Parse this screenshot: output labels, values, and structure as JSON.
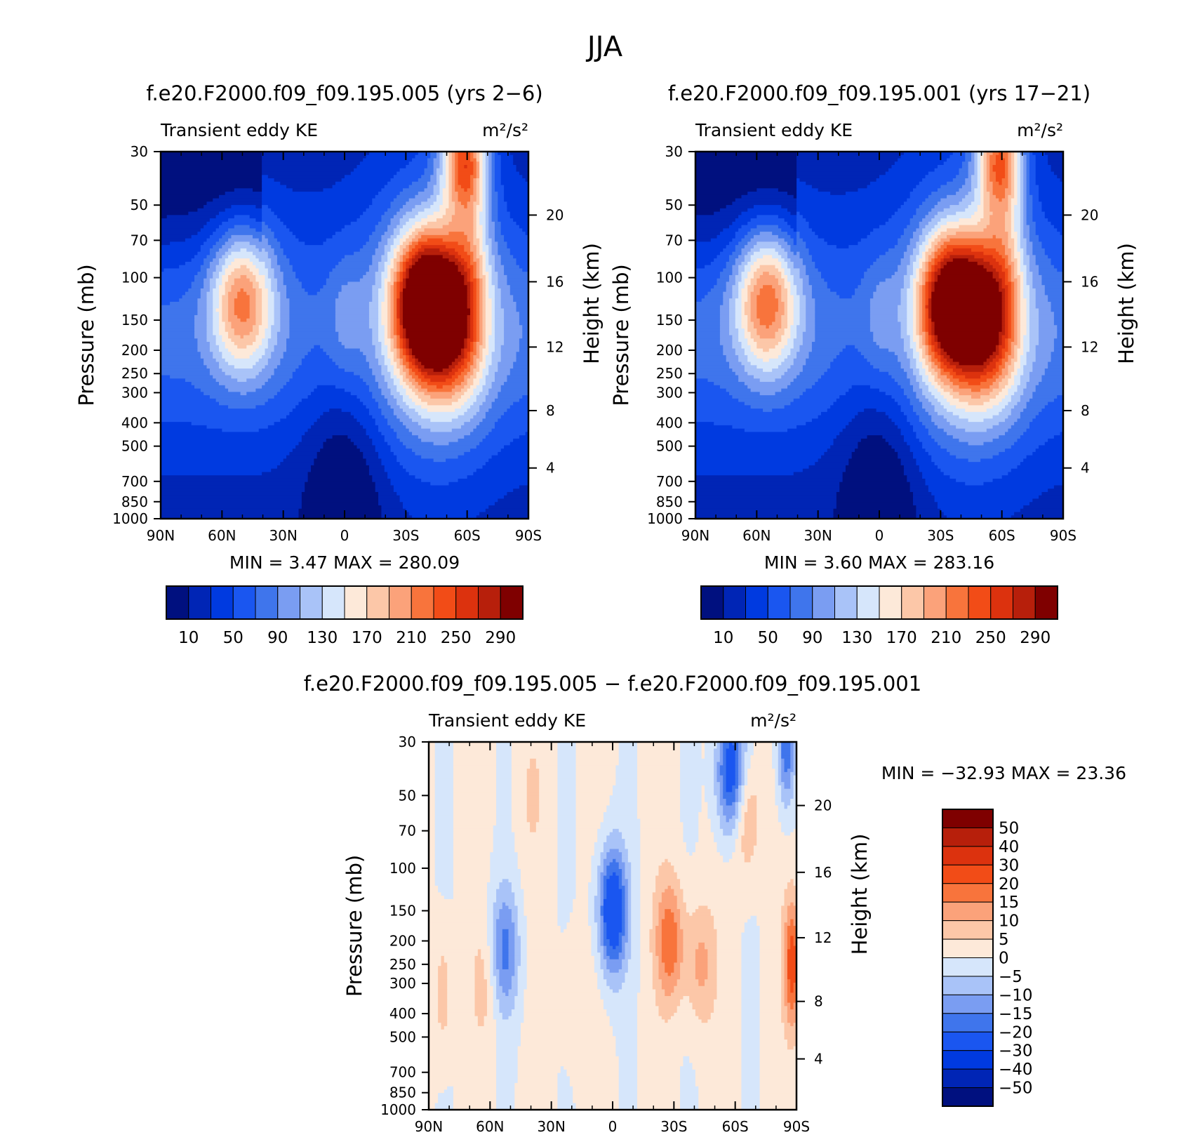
{
  "figure": {
    "title": "JJA"
  },
  "chart_data": [
    {
      "type": "heatmap",
      "id": "panel-a",
      "title": "f.e20.F2000.f09_f09.195.005 (yrs 2−6)",
      "subtitle_left": "Transient eddy KE",
      "units": "m²/s²",
      "ylabel": "Pressure (mb)",
      "ylabel_right": "Height (km)",
      "x_ticks": [
        "90N",
        "60N",
        "30N",
        "0",
        "30S",
        "60S",
        "90S"
      ],
      "y_ticks": [
        "30",
        "50",
        "70",
        "100",
        "150",
        "200",
        "250",
        "300",
        "400",
        "500",
        "700",
        "850",
        "1000"
      ],
      "height_ticks": [
        "4",
        "8",
        "12",
        "16",
        "20"
      ],
      "stats_text": "MIN =    3.47   MAX =  280.09",
      "min": 3.47,
      "max": 280.09,
      "colorbar": {
        "labels": [
          "10",
          "50",
          "90",
          "130",
          "170",
          "210",
          "250",
          "290"
        ],
        "levels": [
          10,
          30,
          50,
          70,
          90,
          110,
          130,
          150,
          170,
          190,
          210,
          230,
          250,
          270,
          290
        ],
        "colors": [
          "#00107f",
          "#0025b5",
          "#003ae0",
          "#1a56f0",
          "#3f75ec",
          "#7a9df2",
          "#a9c3f8",
          "#d6e6fb",
          "#fde9d9",
          "#fcc7a8",
          "#fba27a",
          "#f8743c",
          "#f24c17",
          "#dc320e",
          "#b71f0b",
          "#7f0000"
        ]
      },
      "features": [
        {
          "lat": 50,
          "p": 250,
          "peak": 205
        },
        {
          "lat": -37,
          "p": 260,
          "peak": 280
        },
        {
          "lat": -50,
          "p": 300,
          "peak": 276
        },
        {
          "lat": -58,
          "p": 35,
          "peak": 200
        }
      ]
    },
    {
      "type": "heatmap",
      "id": "panel-b",
      "title": "f.e20.F2000.f09_f09.195.001 (yrs 17−21)",
      "subtitle_left": "Transient eddy KE",
      "units": "m²/s²",
      "ylabel": "Pressure (mb)",
      "ylabel_right": "Height (km)",
      "x_ticks": [
        "90N",
        "60N",
        "30N",
        "0",
        "30S",
        "60S",
        "90S"
      ],
      "y_ticks": [
        "30",
        "50",
        "70",
        "100",
        "150",
        "200",
        "250",
        "300",
        "400",
        "500",
        "700",
        "850",
        "1000"
      ],
      "height_ticks": [
        "4",
        "8",
        "12",
        "16",
        "20"
      ],
      "stats_text": "MIN =    3.60   MAX =  283.16",
      "min": 3.6,
      "max": 283.16,
      "colorbar": {
        "labels": [
          "10",
          "50",
          "90",
          "130",
          "170",
          "210",
          "250",
          "290"
        ],
        "levels": [
          10,
          30,
          50,
          70,
          90,
          110,
          130,
          150,
          170,
          190,
          210,
          230,
          250,
          270,
          290
        ],
        "colors": [
          "#00107f",
          "#0025b5",
          "#003ae0",
          "#1a56f0",
          "#3f75ec",
          "#7a9df2",
          "#a9c3f8",
          "#d6e6fb",
          "#fde9d9",
          "#fcc7a8",
          "#fba27a",
          "#f8743c",
          "#f24c17",
          "#dc320e",
          "#b71f0b",
          "#7f0000"
        ]
      },
      "features": [
        {
          "lat": 55,
          "p": 250,
          "peak": 212
        },
        {
          "lat": -33,
          "p": 250,
          "peak": 283
        },
        {
          "lat": -50,
          "p": 300,
          "peak": 276
        },
        {
          "lat": -58,
          "p": 35,
          "peak": 190
        }
      ]
    },
    {
      "type": "heatmap",
      "id": "panel-diff",
      "title": "f.e20.F2000.f09_f09.195.005 − f.e20.F2000.f09_f09.195.001",
      "subtitle_left": "Transient eddy KE",
      "units": "m²/s²",
      "ylabel": "Pressure (mb)",
      "ylabel_right": "Height (km)",
      "x_ticks": [
        "90N",
        "60N",
        "30N",
        "0",
        "30S",
        "60S",
        "90S"
      ],
      "y_ticks": [
        "30",
        "50",
        "70",
        "100",
        "150",
        "200",
        "250",
        "300",
        "400",
        "500",
        "700",
        "850",
        "1000"
      ],
      "height_ticks": [
        "4",
        "8",
        "12",
        "16",
        "20"
      ],
      "stats_text": "MIN = −32.93   MAX =   23.36",
      "min": -32.93,
      "max": 23.36,
      "colorbar": {
        "labels": [
          "50",
          "40",
          "30",
          "20",
          "15",
          "10",
          "5",
          "0",
          "−5",
          "−10",
          "−15",
          "−20",
          "−30",
          "−40",
          "−50"
        ],
        "levels": [
          -50,
          -40,
          -30,
          -20,
          -15,
          -10,
          -5,
          0,
          5,
          10,
          15,
          20,
          30,
          40,
          50
        ],
        "colors": [
          "#00107f",
          "#0025b5",
          "#003ae0",
          "#1a56f0",
          "#3f75ec",
          "#7a9df2",
          "#a9c3f8",
          "#d6e6fb",
          "#fde9d9",
          "#fcc7a8",
          "#fba27a",
          "#f8743c",
          "#f24c17",
          "#dc320e",
          "#b71f0b",
          "#7f0000"
        ]
      },
      "features": [
        {
          "lat": 0,
          "p": 150,
          "peak": -30
        },
        {
          "lat": -58,
          "p": 40,
          "peak": -28
        },
        {
          "lat": -85,
          "p": 30,
          "peak": -22
        },
        {
          "lat": 53,
          "p": 220,
          "peak": -17
        },
        {
          "lat": -28,
          "p": 200,
          "peak": 18
        },
        {
          "lat": -88,
          "p": 250,
          "peak": 23
        },
        {
          "lat": -65,
          "p": 60,
          "peak": 12
        },
        {
          "lat": -43,
          "p": 250,
          "peak": 11
        },
        {
          "lat": 83,
          "p": 330,
          "peak": 8
        },
        {
          "lat": 62,
          "p": 300,
          "peak": 6
        },
        {
          "lat": 40,
          "p": 50,
          "peak": 4
        },
        {
          "lat": 18,
          "p": 350,
          "peak": 4
        }
      ]
    }
  ]
}
